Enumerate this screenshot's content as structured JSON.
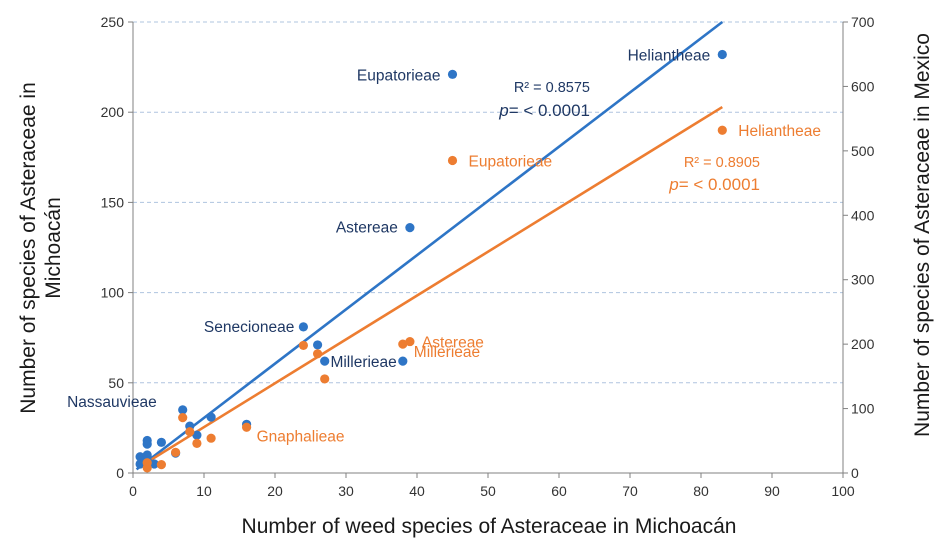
{
  "chart_data": {
    "type": "scatter",
    "xlabel": "Number of weed species of Asteraceae in Michoacán",
    "ylabel_left": "Number of species of Asteraceae in Michoacán",
    "ylabel_right": "Number of species of Asteraceae in Mexico",
    "xlim": [
      0,
      100
    ],
    "ylim_left": [
      0,
      250
    ],
    "ylim_right": [
      0,
      700
    ],
    "x_ticks": [
      "0",
      "10",
      "20",
      "30",
      "40",
      "50",
      "60",
      "70",
      "80",
      "90",
      "100"
    ],
    "y_left_ticks": [
      "0",
      "50",
      "100",
      "150",
      "200",
      "250"
    ],
    "y_right_ticks": [
      "0",
      "100",
      "200",
      "300",
      "400",
      "500",
      "600",
      "700"
    ],
    "grid": "horizontal dashed",
    "series": [
      {
        "axis": "left",
        "color": "#2E75C6",
        "label_color": "#1F3864",
        "points": [
          {
            "x": 83,
            "y": 232,
            "label": "Heliantheae"
          },
          {
            "x": 45,
            "y": 221,
            "label": "Eupatorieae"
          },
          {
            "x": 39,
            "y": 136,
            "label": "Astereae"
          },
          {
            "x": 24,
            "y": 81,
            "label": "Senecioneae"
          },
          {
            "x": 38,
            "y": 62,
            "label": "Millerieae"
          },
          {
            "x": 27,
            "y": 62
          },
          {
            "x": 26,
            "y": 71
          },
          {
            "x": 7,
            "y": 35,
            "label": "Nassauvieae"
          },
          {
            "x": 16,
            "y": 27
          },
          {
            "x": 11,
            "y": 31
          },
          {
            "x": 8,
            "y": 26
          },
          {
            "x": 9,
            "y": 21
          },
          {
            "x": 4,
            "y": 17
          },
          {
            "x": 2,
            "y": 18
          },
          {
            "x": 2,
            "y": 16
          },
          {
            "x": 6,
            "y": 11
          },
          {
            "x": 1,
            "y": 9
          },
          {
            "x": 2,
            "y": 10
          },
          {
            "x": 2,
            "y": 7
          },
          {
            "x": 1,
            "y": 5
          },
          {
            "x": 3,
            "y": 5
          }
        ],
        "trend": {
          "x1": 0.5,
          "y1": 2,
          "x2": 83,
          "y2": 250
        },
        "annotation": {
          "r2": "R² = 0.8575",
          "p_italic": "p",
          "p_rest": "= < 0.0001"
        }
      },
      {
        "axis": "right",
        "color": "#ED7D31",
        "label_color": "#ED7D31",
        "points": [
          {
            "x": 83,
            "y": 532,
            "label": "Heliantheae"
          },
          {
            "x": 45,
            "y": 485,
            "label": "Eupatorieae"
          },
          {
            "x": 39,
            "y": 204,
            "label": "Astereae"
          },
          {
            "x": 38,
            "y": 200,
            "label": "Millerieae"
          },
          {
            "x": 24,
            "y": 198
          },
          {
            "x": 26,
            "y": 185
          },
          {
            "x": 27,
            "y": 146
          },
          {
            "x": 16,
            "y": 71,
            "label": "Gnaphalieae"
          },
          {
            "x": 7,
            "y": 86
          },
          {
            "x": 8,
            "y": 64
          },
          {
            "x": 11,
            "y": 54
          },
          {
            "x": 9,
            "y": 46
          },
          {
            "x": 6,
            "y": 32
          },
          {
            "x": 4,
            "y": 13
          },
          {
            "x": 2,
            "y": 8
          },
          {
            "x": 2,
            "y": 16
          }
        ],
        "trend": {
          "x1": 1,
          "y1": 10,
          "x2": 83,
          "y2": 568
        },
        "annotation": {
          "r2": "R² = 0.8905",
          "p_italic": "p",
          "p_rest": "= < 0.0001"
        }
      }
    ]
  }
}
